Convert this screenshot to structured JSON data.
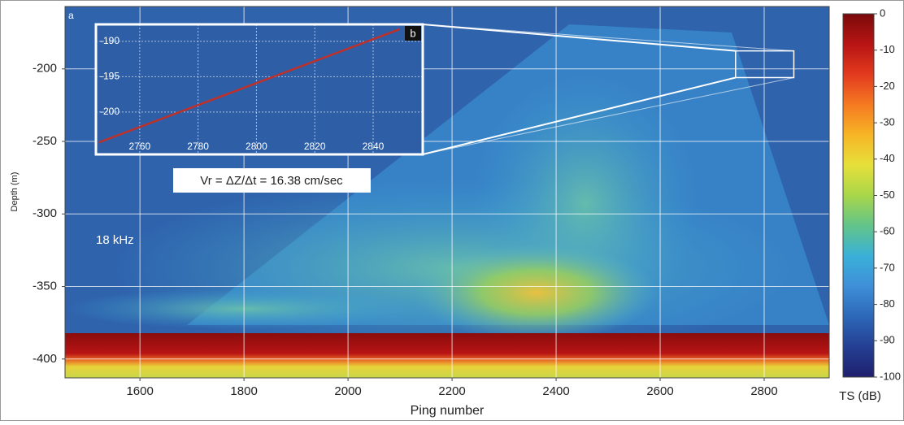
{
  "chart_data": {
    "type": "echogram",
    "x_label": "Ping number",
    "y_label": "Depth (m)",
    "xlim": [
      1456,
      2925
    ],
    "xticks": [
      1600,
      1800,
      2000,
      2200,
      2400,
      2600,
      2800
    ],
    "ylim": [
      -413,
      -157
    ],
    "yticks": [
      -200,
      -250,
      -300,
      -350,
      -400
    ],
    "grid": true,
    "annotations": {
      "panel": "a",
      "frequency": "18 kHz",
      "velocity": "Vr = ΔZ/Δt = 16.38 cm/sec"
    },
    "colorbar": {
      "label": "TS (dB)",
      "lim": [
        -100,
        0
      ],
      "ticks": [
        0,
        -10,
        -20,
        -30,
        -40,
        -50,
        -60,
        -70,
        -80,
        -90,
        -100
      ],
      "colors": [
        "#7a0a0a",
        "#b81414",
        "#e23a1e",
        "#f57a22",
        "#f7b526",
        "#e6e03a",
        "#a8d64a",
        "#62c48a",
        "#3ab0d8",
        "#3f8fd8",
        "#2d68b8",
        "#243f93",
        "#1f1f6e"
      ]
    },
    "inset": {
      "panel": "b",
      "xlim": [
        2745,
        2857
      ],
      "ylim": [
        -206,
        -187.6
      ],
      "xticks": [
        2760,
        2780,
        2800,
        2820,
        2840
      ],
      "yticks": [
        -190,
        -195,
        -200
      ],
      "fit": {
        "color": "#c0302a",
        "x": [
          2746,
          2849
        ],
        "y": [
          -204.3,
          -188.3
        ]
      }
    }
  }
}
